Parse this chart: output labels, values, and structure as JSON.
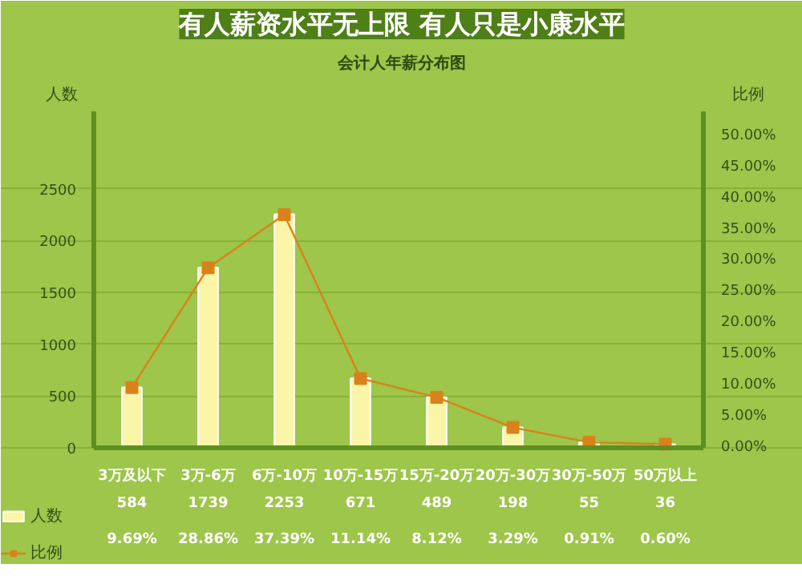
{
  "chart_data": {
    "type": "bar",
    "title": "有人薪资水平无上限 有人只是小康水平",
    "subtitle": "会计人年薪分布图",
    "ylabel": "人数",
    "y2label": "比例",
    "categories": [
      "3万及以下",
      "3万-6万",
      "6万-10万",
      "10万-15万",
      "15万-20万",
      "20万-30万",
      "30万-50万",
      "50万以上"
    ],
    "series": [
      {
        "name": "人数",
        "color": "#fbf5a8",
        "values": [
          584,
          1739,
          2253,
          671,
          489,
          198,
          55,
          36
        ],
        "value_labels": [
          "584",
          "1739",
          "2253",
          "671",
          "489",
          "198",
          "55",
          "36"
        ]
      },
      {
        "name": "比例",
        "type": "line",
        "axis": "y2",
        "color": "#d9821c",
        "marker": "square",
        "values": [
          9.69,
          28.86,
          37.39,
          11.14,
          8.12,
          3.29,
          0.91,
          0.6
        ],
        "value_labels": [
          "9.69%",
          "28.86%",
          "37.39%",
          "11.14%",
          "8.12%",
          "3.29%",
          "0.91%",
          "0.60%"
        ]
      }
    ],
    "ylim": [
      0,
      3250
    ],
    "yticks": [
      0,
      500,
      1000,
      1500,
      2000,
      2500
    ],
    "y2lim": [
      0,
      54
    ],
    "y2ticks": [
      {
        "value": 0,
        "label": "0.00%"
      },
      {
        "value": 5,
        "label": "5.00%"
      },
      {
        "value": 10,
        "label": "10.00%"
      },
      {
        "value": 15,
        "label": "15.00%"
      },
      {
        "value": 20,
        "label": "20.00%"
      },
      {
        "value": 25,
        "label": "25.00%"
      },
      {
        "value": 30,
        "label": "30.00%"
      },
      {
        "value": 35,
        "label": "35.00%"
      },
      {
        "value": 40,
        "label": "40.00%"
      },
      {
        "value": 45,
        "label": "45.00%"
      },
      {
        "value": 50,
        "label": "50.00%"
      }
    ],
    "grid": "y",
    "legend": "bottom left"
  }
}
